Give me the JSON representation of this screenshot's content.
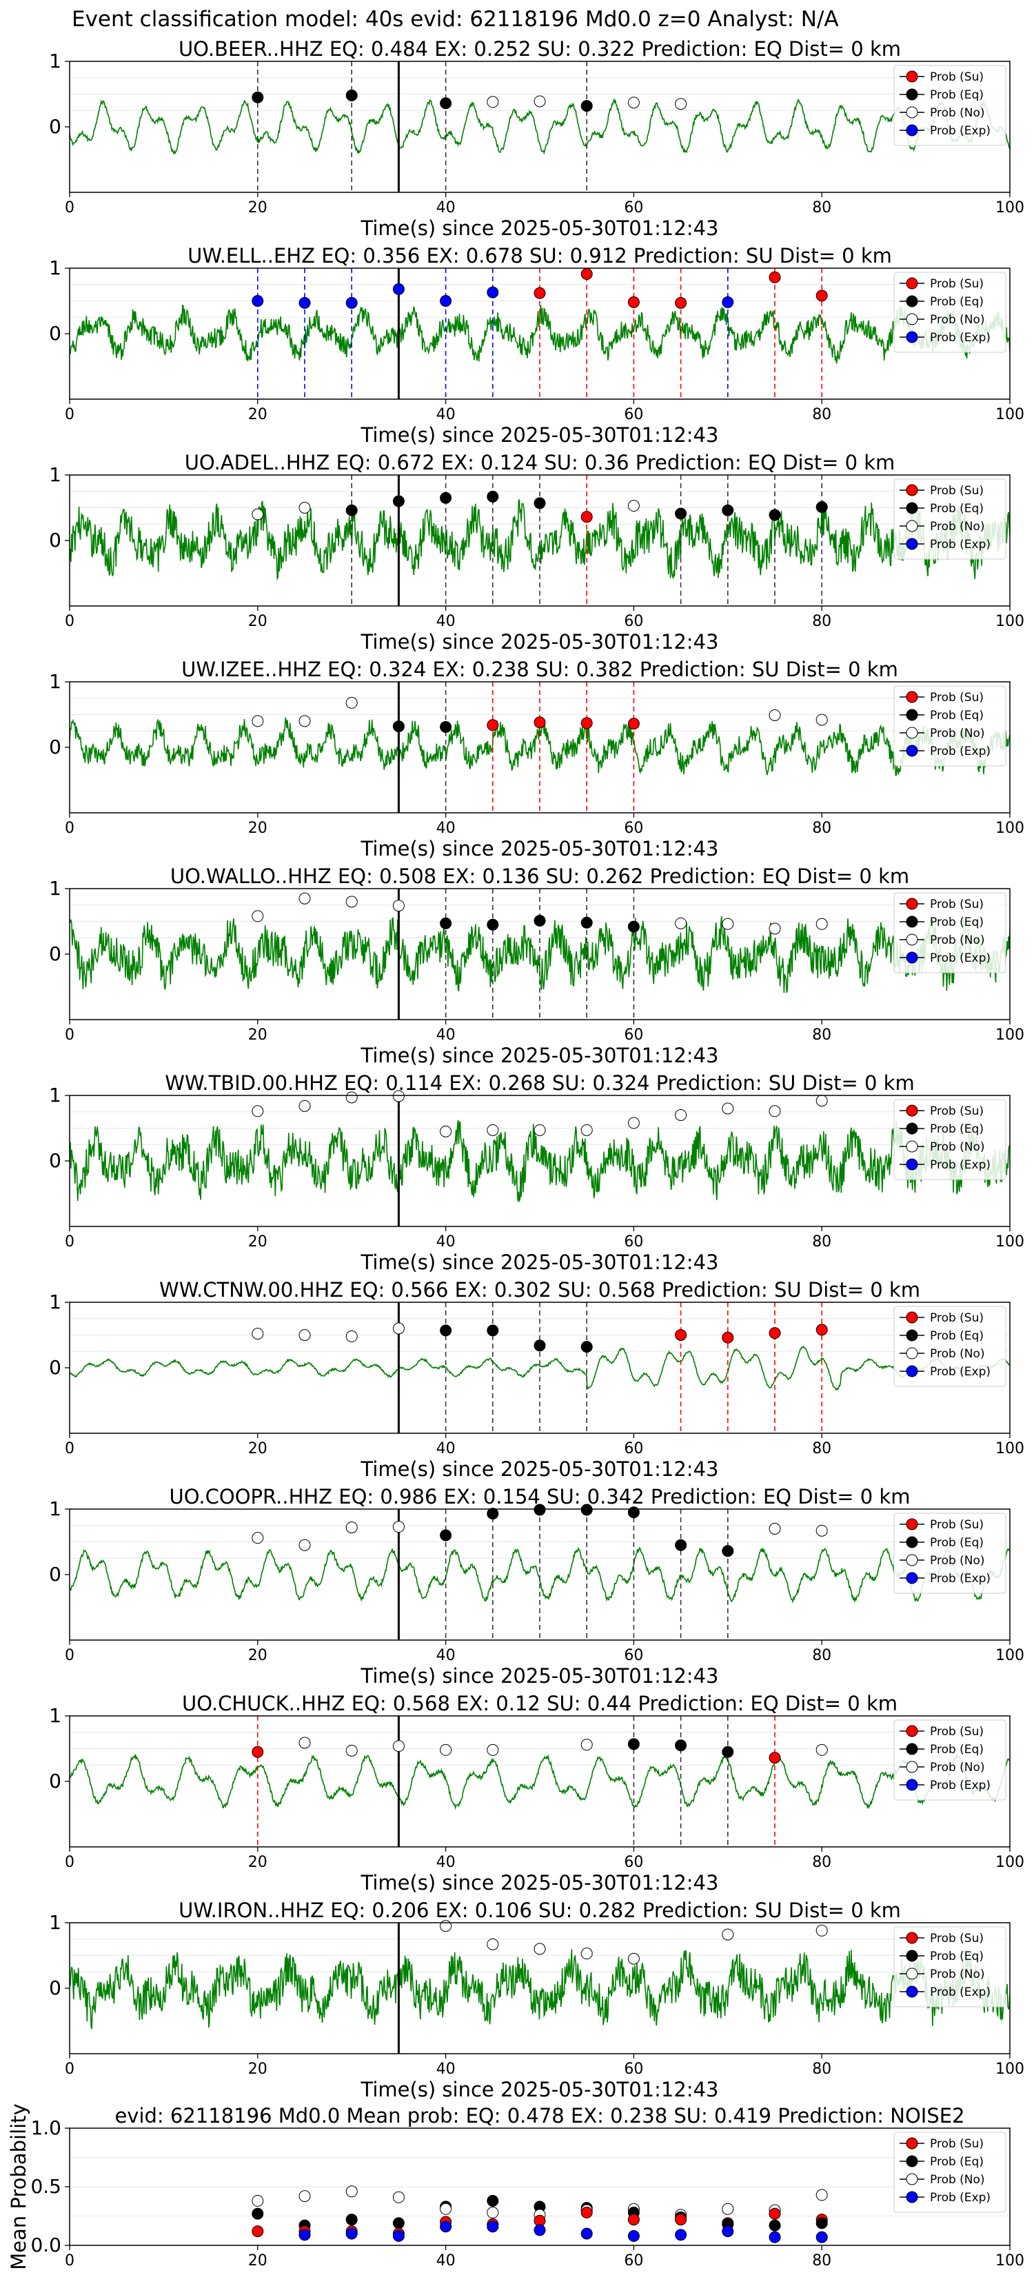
{
  "figure_title": "Event classification model: 40s evid: 62118196 Md0.0 z=0 Analyst: N/A",
  "xlabel": "Time(s) since 2025-05-30T01:12:43",
  "legend": [
    "Prob (Su)",
    "Prob (Eq)",
    "Prob (No)",
    "Prob (Exp)"
  ],
  "colors": {
    "Su": "#ff0000",
    "Eq": "#000000",
    "No": "#ffffff",
    "Exp": "#0000ff",
    "trace": "#008000"
  },
  "chart_data": [
    {
      "type": "line",
      "title": "UO.BEER..HHZ   EQ: 0.484  EX: 0.252  SU: 0.322   Prediction: EQ    Dist= 0 km",
      "xlim": [
        0,
        100
      ],
      "ylim": [
        -1,
        1
      ],
      "yticks": [
        0,
        1
      ],
      "xticks": [
        0,
        20,
        40,
        60,
        80,
        100
      ],
      "origin_line": 35,
      "noise": "low",
      "legend_pos": "upper-right",
      "points": [
        {
          "x": 20,
          "y": 0.45,
          "c": "Eq"
        },
        {
          "x": 30,
          "y": 0.48,
          "c": "Eq"
        },
        {
          "x": 40,
          "y": 0.36,
          "c": "Eq"
        },
        {
          "x": 45,
          "y": 0.38,
          "c": "No"
        },
        {
          "x": 50,
          "y": 0.39,
          "c": "No"
        },
        {
          "x": 55,
          "y": 0.32,
          "c": "Eq"
        },
        {
          "x": 60,
          "y": 0.37,
          "c": "No"
        },
        {
          "x": 65,
          "y": 0.35,
          "c": "No"
        }
      ]
    },
    {
      "type": "line",
      "title": "UW.ELL..EHZ   EQ: 0.356  EX: 0.678  SU: 0.912   Prediction: SU    Dist= 0 km",
      "xlim": [
        0,
        100
      ],
      "ylim": [
        -1,
        1
      ],
      "yticks": [
        0,
        1
      ],
      "xticks": [
        0,
        20,
        40,
        60,
        80,
        100
      ],
      "origin_line": 35,
      "noise": "mid",
      "legend_pos": "upper-right",
      "points": [
        {
          "x": 20,
          "y": 0.5,
          "c": "Exp"
        },
        {
          "x": 25,
          "y": 0.47,
          "c": "Exp"
        },
        {
          "x": 30,
          "y": 0.47,
          "c": "Exp"
        },
        {
          "x": 35,
          "y": 0.68,
          "c": "Exp"
        },
        {
          "x": 40,
          "y": 0.5,
          "c": "Exp"
        },
        {
          "x": 45,
          "y": 0.63,
          "c": "Exp"
        },
        {
          "x": 50,
          "y": 0.62,
          "c": "Su"
        },
        {
          "x": 55,
          "y": 0.91,
          "c": "Su"
        },
        {
          "x": 60,
          "y": 0.48,
          "c": "Su"
        },
        {
          "x": 65,
          "y": 0.47,
          "c": "Su"
        },
        {
          "x": 70,
          "y": 0.48,
          "c": "Exp"
        },
        {
          "x": 75,
          "y": 0.86,
          "c": "Su"
        },
        {
          "x": 80,
          "y": 0.58,
          "c": "Su"
        }
      ]
    },
    {
      "type": "line",
      "title": "UO.ADEL..HHZ   EQ: 0.672  EX: 0.124  SU: 0.36   Prediction: EQ    Dist= 0 km",
      "xlim": [
        0,
        100
      ],
      "ylim": [
        -1,
        1
      ],
      "yticks": [
        0,
        1
      ],
      "xticks": [
        0,
        20,
        40,
        60,
        80,
        100
      ],
      "origin_line": 35,
      "noise": "high",
      "legend_pos": "upper-right",
      "points": [
        {
          "x": 20,
          "y": 0.4,
          "c": "No"
        },
        {
          "x": 25,
          "y": 0.5,
          "c": "No"
        },
        {
          "x": 30,
          "y": 0.46,
          "c": "Eq"
        },
        {
          "x": 35,
          "y": 0.6,
          "c": "Eq"
        },
        {
          "x": 40,
          "y": 0.65,
          "c": "Eq"
        },
        {
          "x": 45,
          "y": 0.67,
          "c": "Eq"
        },
        {
          "x": 50,
          "y": 0.57,
          "c": "Eq"
        },
        {
          "x": 55,
          "y": 0.36,
          "c": "Su"
        },
        {
          "x": 60,
          "y": 0.53,
          "c": "No"
        },
        {
          "x": 65,
          "y": 0.41,
          "c": "Eq"
        },
        {
          "x": 70,
          "y": 0.46,
          "c": "Eq"
        },
        {
          "x": 75,
          "y": 0.39,
          "c": "Eq"
        },
        {
          "x": 80,
          "y": 0.51,
          "c": "Eq"
        }
      ]
    },
    {
      "type": "line",
      "title": "UW.IZEE..HHZ   EQ: 0.324  EX: 0.238  SU: 0.382   Prediction: SU    Dist= 0 km",
      "xlim": [
        0,
        100
      ],
      "ylim": [
        -1,
        1
      ],
      "yticks": [
        0,
        1
      ],
      "xticks": [
        0,
        20,
        40,
        60,
        80,
        100
      ],
      "origin_line": 35,
      "noise": "mid",
      "legend_pos": "upper-right",
      "points": [
        {
          "x": 20,
          "y": 0.4,
          "c": "No"
        },
        {
          "x": 25,
          "y": 0.4,
          "c": "No"
        },
        {
          "x": 30,
          "y": 0.68,
          "c": "No"
        },
        {
          "x": 35,
          "y": 0.32,
          "c": "Eq"
        },
        {
          "x": 40,
          "y": 0.31,
          "c": "Eq"
        },
        {
          "x": 45,
          "y": 0.34,
          "c": "Su"
        },
        {
          "x": 50,
          "y": 0.38,
          "c": "Su"
        },
        {
          "x": 55,
          "y": 0.37,
          "c": "Su"
        },
        {
          "x": 60,
          "y": 0.36,
          "c": "Su"
        },
        {
          "x": 75,
          "y": 0.49,
          "c": "No"
        },
        {
          "x": 80,
          "y": 0.42,
          "c": "No"
        }
      ]
    },
    {
      "type": "line",
      "title": "UO.WALLO..HHZ   EQ: 0.508  EX: 0.136  SU: 0.262   Prediction: EQ    Dist= 0 km",
      "xlim": [
        0,
        100
      ],
      "ylim": [
        -1,
        1
      ],
      "yticks": [
        0,
        1
      ],
      "xticks": [
        0,
        20,
        40,
        60,
        80,
        100
      ],
      "origin_line": 35,
      "noise": "high",
      "legend_pos": "upper-right",
      "points": [
        {
          "x": 20,
          "y": 0.58,
          "c": "No"
        },
        {
          "x": 25,
          "y": 0.85,
          "c": "No"
        },
        {
          "x": 30,
          "y": 0.8,
          "c": "No"
        },
        {
          "x": 35,
          "y": 0.74,
          "c": "No"
        },
        {
          "x": 40,
          "y": 0.47,
          "c": "Eq"
        },
        {
          "x": 45,
          "y": 0.45,
          "c": "Eq"
        },
        {
          "x": 50,
          "y": 0.51,
          "c": "Eq"
        },
        {
          "x": 55,
          "y": 0.48,
          "c": "Eq"
        },
        {
          "x": 60,
          "y": 0.42,
          "c": "Eq"
        },
        {
          "x": 65,
          "y": 0.47,
          "c": "No"
        },
        {
          "x": 70,
          "y": 0.46,
          "c": "No"
        },
        {
          "x": 75,
          "y": 0.39,
          "c": "No"
        },
        {
          "x": 80,
          "y": 0.46,
          "c": "No"
        }
      ]
    },
    {
      "type": "line",
      "title": "WW.TBID.00.HHZ   EQ: 0.114  EX: 0.268  SU: 0.324   Prediction: SU    Dist= 0 km",
      "xlim": [
        0,
        100
      ],
      "ylim": [
        -1,
        1
      ],
      "yticks": [
        0,
        1
      ],
      "xticks": [
        0,
        20,
        40,
        60,
        80,
        100
      ],
      "origin_line": 35,
      "noise": "high",
      "legend_pos": "upper-right",
      "points": [
        {
          "x": 20,
          "y": 0.76,
          "c": "No"
        },
        {
          "x": 25,
          "y": 0.84,
          "c": "No"
        },
        {
          "x": 30,
          "y": 0.97,
          "c": "No"
        },
        {
          "x": 35,
          "y": 0.99,
          "c": "No"
        },
        {
          "x": 40,
          "y": 0.45,
          "c": "No"
        },
        {
          "x": 45,
          "y": 0.47,
          "c": "No"
        },
        {
          "x": 50,
          "y": 0.47,
          "c": "No"
        },
        {
          "x": 55,
          "y": 0.47,
          "c": "No"
        },
        {
          "x": 60,
          "y": 0.58,
          "c": "No"
        },
        {
          "x": 65,
          "y": 0.7,
          "c": "No"
        },
        {
          "x": 70,
          "y": 0.8,
          "c": "No"
        },
        {
          "x": 75,
          "y": 0.76,
          "c": "No"
        },
        {
          "x": 80,
          "y": 0.92,
          "c": "No"
        }
      ]
    },
    {
      "type": "line",
      "title": "WW.CTNW.00.HHZ   EQ: 0.566  EX: 0.302  SU: 0.568   Prediction: SU    Dist= 0 km",
      "xlim": [
        0,
        100
      ],
      "ylim": [
        -1,
        1
      ],
      "yticks": [
        0,
        1
      ],
      "xticks": [
        0,
        20,
        40,
        60,
        80,
        100
      ],
      "origin_line": 35,
      "noise": "quiet",
      "legend_pos": "upper-right",
      "points": [
        {
          "x": 20,
          "y": 0.52,
          "c": "No"
        },
        {
          "x": 25,
          "y": 0.5,
          "c": "No"
        },
        {
          "x": 30,
          "y": 0.48,
          "c": "No"
        },
        {
          "x": 35,
          "y": 0.6,
          "c": "No"
        },
        {
          "x": 40,
          "y": 0.57,
          "c": "Eq"
        },
        {
          "x": 45,
          "y": 0.57,
          "c": "Eq"
        },
        {
          "x": 50,
          "y": 0.34,
          "c": "Eq"
        },
        {
          "x": 55,
          "y": 0.32,
          "c": "Eq"
        },
        {
          "x": 65,
          "y": 0.5,
          "c": "Su"
        },
        {
          "x": 70,
          "y": 0.46,
          "c": "Su"
        },
        {
          "x": 75,
          "y": 0.53,
          "c": "Su"
        },
        {
          "x": 80,
          "y": 0.58,
          "c": "Su"
        }
      ]
    },
    {
      "type": "line",
      "title": "UO.COOPR..HHZ   EQ: 0.986  EX: 0.154  SU: 0.342   Prediction: EQ    Dist= 0 km",
      "xlim": [
        0,
        100
      ],
      "ylim": [
        -1,
        1
      ],
      "yticks": [
        0,
        1
      ],
      "xticks": [
        0,
        20,
        40,
        60,
        80,
        100
      ],
      "origin_line": 35,
      "noise": "low",
      "legend_pos": "upper-right",
      "points": [
        {
          "x": 20,
          "y": 0.56,
          "c": "No"
        },
        {
          "x": 25,
          "y": 0.45,
          "c": "No"
        },
        {
          "x": 30,
          "y": 0.72,
          "c": "No"
        },
        {
          "x": 35,
          "y": 0.73,
          "c": "No"
        },
        {
          "x": 40,
          "y": 0.6,
          "c": "Eq"
        },
        {
          "x": 45,
          "y": 0.93,
          "c": "Eq"
        },
        {
          "x": 50,
          "y": 0.99,
          "c": "Eq"
        },
        {
          "x": 55,
          "y": 0.99,
          "c": "Eq"
        },
        {
          "x": 60,
          "y": 0.95,
          "c": "Eq"
        },
        {
          "x": 65,
          "y": 0.45,
          "c": "Eq"
        },
        {
          "x": 70,
          "y": 0.36,
          "c": "Eq"
        },
        {
          "x": 75,
          "y": 0.7,
          "c": "No"
        },
        {
          "x": 80,
          "y": 0.67,
          "c": "No"
        }
      ]
    },
    {
      "type": "line",
      "title": "UO.CHUCK..HHZ   EQ: 0.568  EX: 0.12  SU: 0.44   Prediction: EQ    Dist= 0 km",
      "xlim": [
        0,
        100
      ],
      "ylim": [
        -1,
        1
      ],
      "yticks": [
        0,
        1
      ],
      "xticks": [
        0,
        20,
        40,
        60,
        80,
        100
      ],
      "origin_line": 35,
      "noise": "low",
      "legend_pos": "upper-right",
      "points": [
        {
          "x": 20,
          "y": 0.45,
          "c": "Su"
        },
        {
          "x": 25,
          "y": 0.59,
          "c": "No"
        },
        {
          "x": 30,
          "y": 0.47,
          "c": "No"
        },
        {
          "x": 35,
          "y": 0.54,
          "c": "No"
        },
        {
          "x": 40,
          "y": 0.48,
          "c": "No"
        },
        {
          "x": 45,
          "y": 0.48,
          "c": "No"
        },
        {
          "x": 55,
          "y": 0.56,
          "c": "No"
        },
        {
          "x": 60,
          "y": 0.57,
          "c": "Eq"
        },
        {
          "x": 65,
          "y": 0.55,
          "c": "Eq"
        },
        {
          "x": 70,
          "y": 0.45,
          "c": "Eq"
        },
        {
          "x": 75,
          "y": 0.36,
          "c": "Su"
        },
        {
          "x": 80,
          "y": 0.48,
          "c": "No"
        }
      ]
    },
    {
      "type": "line",
      "title": "UW.IRON..HHZ   EQ: 0.206  EX: 0.106  SU: 0.282   Prediction: SU    Dist= 0 km",
      "xlim": [
        0,
        100
      ],
      "ylim": [
        -1,
        1
      ],
      "yticks": [
        0,
        1
      ],
      "xticks": [
        0,
        20,
        40,
        60,
        80,
        100
      ],
      "origin_line": 35,
      "noise": "high",
      "legend_pos": "upper-right",
      "points": [
        {
          "x": 40,
          "y": 0.95,
          "c": "No"
        },
        {
          "x": 45,
          "y": 0.67,
          "c": "No"
        },
        {
          "x": 50,
          "y": 0.6,
          "c": "No"
        },
        {
          "x": 55,
          "y": 0.53,
          "c": "No"
        },
        {
          "x": 60,
          "y": 0.45,
          "c": "No"
        },
        {
          "x": 70,
          "y": 0.82,
          "c": "No"
        },
        {
          "x": 80,
          "y": 0.88,
          "c": "No"
        }
      ]
    },
    {
      "type": "scatter",
      "title": "evid: 62118196  Md0.0   Mean prob:   EQ: 0.478  EX: 0.238  SU: 0.419   Prediction: NOISE2",
      "ylabel": "Mean Probability",
      "xlim": [
        0,
        100
      ],
      "ylim": [
        0,
        1
      ],
      "yticks": [
        0.0,
        0.5,
        1.0
      ],
      "xticks": [
        0,
        20,
        40,
        60,
        80,
        100
      ],
      "legend_pos": "upper-right",
      "points": [
        {
          "x": 20,
          "y": 0.38,
          "c": "No"
        },
        {
          "x": 20,
          "y": 0.27,
          "c": "Eq"
        },
        {
          "x": 20,
          "y": 0.12,
          "c": "Su"
        },
        {
          "x": 25,
          "y": 0.42,
          "c": "No"
        },
        {
          "x": 25,
          "y": 0.17,
          "c": "Eq"
        },
        {
          "x": 25,
          "y": 0.12,
          "c": "Su"
        },
        {
          "x": 25,
          "y": 0.09,
          "c": "Exp"
        },
        {
          "x": 30,
          "y": 0.46,
          "c": "No"
        },
        {
          "x": 30,
          "y": 0.22,
          "c": "Eq"
        },
        {
          "x": 30,
          "y": 0.12,
          "c": "Su"
        },
        {
          "x": 30,
          "y": 0.1,
          "c": "Exp"
        },
        {
          "x": 35,
          "y": 0.41,
          "c": "No"
        },
        {
          "x": 35,
          "y": 0.19,
          "c": "Eq"
        },
        {
          "x": 35,
          "y": 0.1,
          "c": "Su"
        },
        {
          "x": 35,
          "y": 0.08,
          "c": "Exp"
        },
        {
          "x": 40,
          "y": 0.33,
          "c": "Eq"
        },
        {
          "x": 40,
          "y": 0.31,
          "c": "No"
        },
        {
          "x": 40,
          "y": 0.2,
          "c": "Su"
        },
        {
          "x": 40,
          "y": 0.16,
          "c": "Exp"
        },
        {
          "x": 45,
          "y": 0.38,
          "c": "Eq"
        },
        {
          "x": 45,
          "y": 0.28,
          "c": "No"
        },
        {
          "x": 45,
          "y": 0.18,
          "c": "Su"
        },
        {
          "x": 45,
          "y": 0.16,
          "c": "Exp"
        },
        {
          "x": 50,
          "y": 0.33,
          "c": "Eq"
        },
        {
          "x": 50,
          "y": 0.26,
          "c": "No"
        },
        {
          "x": 50,
          "y": 0.21,
          "c": "Su"
        },
        {
          "x": 50,
          "y": 0.13,
          "c": "Exp"
        },
        {
          "x": 55,
          "y": 0.32,
          "c": "Eq"
        },
        {
          "x": 55,
          "y": 0.3,
          "c": "No"
        },
        {
          "x": 55,
          "y": 0.28,
          "c": "Su"
        },
        {
          "x": 55,
          "y": 0.1,
          "c": "Exp"
        },
        {
          "x": 60,
          "y": 0.31,
          "c": "No"
        },
        {
          "x": 60,
          "y": 0.28,
          "c": "Eq"
        },
        {
          "x": 60,
          "y": 0.22,
          "c": "Su"
        },
        {
          "x": 60,
          "y": 0.08,
          "c": "Exp"
        },
        {
          "x": 65,
          "y": 0.26,
          "c": "No"
        },
        {
          "x": 65,
          "y": 0.24,
          "c": "Eq"
        },
        {
          "x": 65,
          "y": 0.22,
          "c": "Su"
        },
        {
          "x": 65,
          "y": 0.09,
          "c": "Exp"
        },
        {
          "x": 70,
          "y": 0.31,
          "c": "No"
        },
        {
          "x": 70,
          "y": 0.19,
          "c": "Su"
        },
        {
          "x": 70,
          "y": 0.18,
          "c": "Eq"
        },
        {
          "x": 70,
          "y": 0.12,
          "c": "Exp"
        },
        {
          "x": 75,
          "y": 0.3,
          "c": "No"
        },
        {
          "x": 75,
          "y": 0.27,
          "c": "Su"
        },
        {
          "x": 75,
          "y": 0.17,
          "c": "Eq"
        },
        {
          "x": 75,
          "y": 0.07,
          "c": "Exp"
        },
        {
          "x": 80,
          "y": 0.43,
          "c": "No"
        },
        {
          "x": 80,
          "y": 0.22,
          "c": "Su"
        },
        {
          "x": 80,
          "y": 0.19,
          "c": "Eq"
        },
        {
          "x": 80,
          "y": 0.07,
          "c": "Exp"
        }
      ]
    }
  ]
}
